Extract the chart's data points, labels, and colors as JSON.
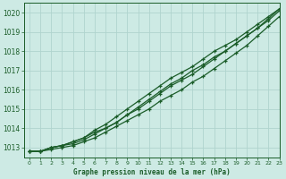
{
  "title": "Graphe pression niveau de la mer (hPa)",
  "xlabel": "Graphe pression niveau de la mer (hPa)",
  "bg_color": "#cdeae4",
  "grid_color": "#b0d4ce",
  "line_color": "#1a5c28",
  "marker_color": "#1a5c28",
  "ylim": [
    1012.5,
    1020.5
  ],
  "xlim": [
    -0.5,
    23
  ],
  "yticks": [
    1013,
    1014,
    1015,
    1016,
    1017,
    1018,
    1019,
    1020
  ],
  "xticks": [
    0,
    1,
    2,
    3,
    4,
    5,
    6,
    7,
    8,
    9,
    10,
    11,
    12,
    13,
    14,
    15,
    16,
    17,
    18,
    19,
    20,
    21,
    22,
    23
  ],
  "series": [
    [
      1012.8,
      1012.8,
      1012.9,
      1013.0,
      1013.1,
      1013.3,
      1013.5,
      1013.8,
      1014.1,
      1014.4,
      1014.7,
      1015.0,
      1015.4,
      1015.7,
      1016.0,
      1016.4,
      1016.7,
      1017.1,
      1017.5,
      1017.9,
      1018.3,
      1018.8,
      1019.3,
      1019.8
    ],
    [
      1012.8,
      1012.8,
      1013.0,
      1013.1,
      1013.2,
      1013.4,
      1013.7,
      1014.0,
      1014.3,
      1014.7,
      1015.1,
      1015.5,
      1015.9,
      1016.3,
      1016.6,
      1017.0,
      1017.3,
      1017.7,
      1018.0,
      1018.4,
      1018.8,
      1019.2,
      1019.6,
      1020.1
    ],
    [
      1012.8,
      1012.8,
      1013.0,
      1013.1,
      1013.3,
      1013.5,
      1013.9,
      1014.2,
      1014.6,
      1015.0,
      1015.4,
      1015.8,
      1016.2,
      1016.6,
      1016.9,
      1017.2,
      1017.6,
      1018.0,
      1018.3,
      1018.6,
      1019.0,
      1019.4,
      1019.8,
      1020.2
    ],
    [
      1012.8,
      1012.8,
      1013.0,
      1013.1,
      1013.3,
      1013.5,
      1013.8,
      1014.0,
      1014.3,
      1014.7,
      1015.0,
      1015.4,
      1015.8,
      1016.2,
      1016.5,
      1016.8,
      1017.2,
      1017.6,
      1018.0,
      1018.4,
      1018.8,
      1019.2,
      1019.7,
      1020.2
    ]
  ]
}
